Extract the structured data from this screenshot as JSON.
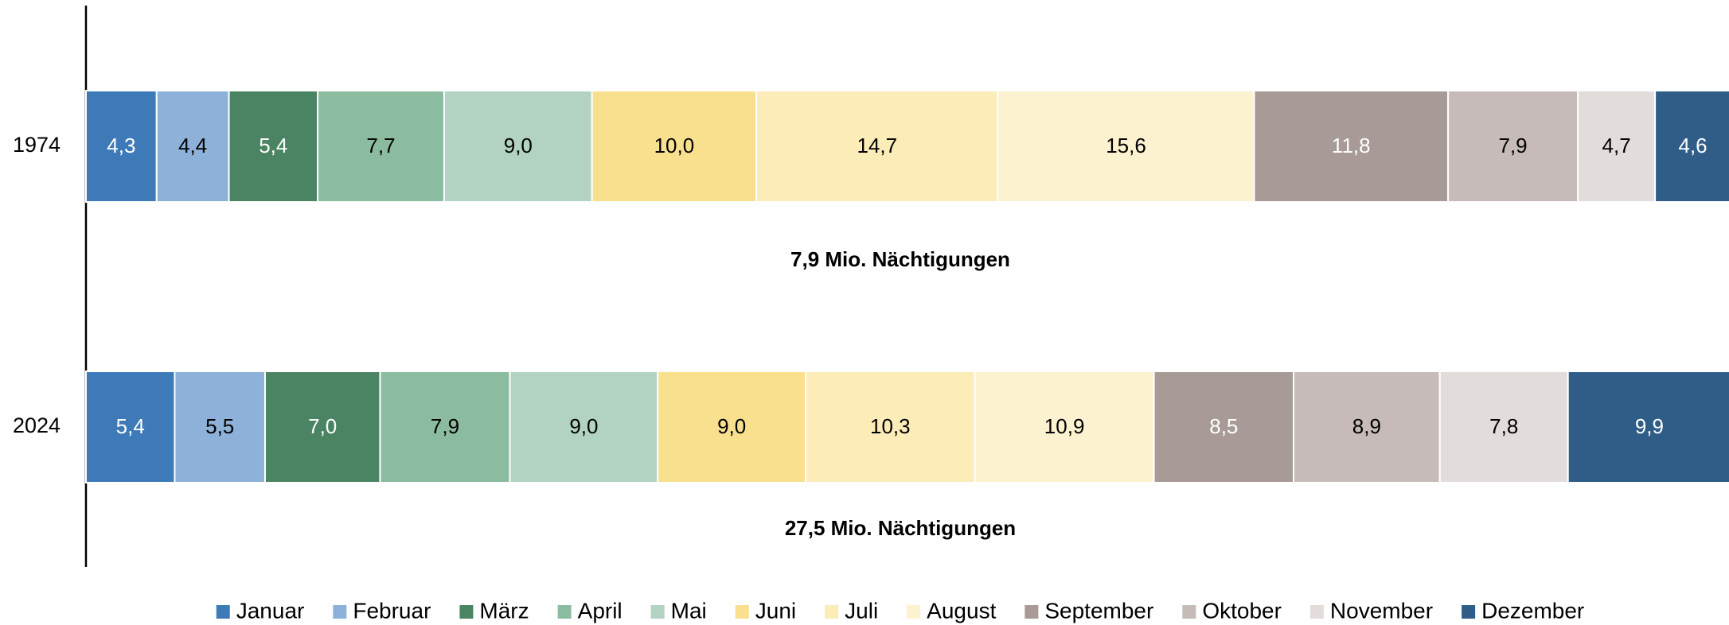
{
  "chart_data": {
    "type": "stacked-bar-horizontal",
    "categories": [
      "1974",
      "2024"
    ],
    "annotations": [
      "7,9 Mio. Nächtigungen",
      "27,5 Mio. Nächtigungen"
    ],
    "xlim": [
      0,
      100
    ],
    "legend": "bottom",
    "series": [
      {
        "name": "Januar",
        "color": "#3f7ab8",
        "values": [
          4.3,
          5.4
        ],
        "value_labels": [
          "4,3",
          "5,4"
        ]
      },
      {
        "name": "Februar",
        "color": "#8db1d8",
        "values": [
          4.4,
          5.5
        ],
        "value_labels": [
          "4,4",
          "5,5"
        ]
      },
      {
        "name": "März",
        "color": "#4a8462",
        "values": [
          5.4,
          7.0
        ],
        "value_labels": [
          "5,4",
          "7,0"
        ]
      },
      {
        "name": "April",
        "color": "#8cbca0",
        "values": [
          7.7,
          7.9
        ],
        "value_labels": [
          "7,7",
          "7,9"
        ]
      },
      {
        "name": "Mai",
        "color": "#b2d3c2",
        "values": [
          9.0,
          9.0
        ],
        "value_labels": [
          "9,0",
          "9,0"
        ]
      },
      {
        "name": "Juni",
        "color": "#f9e08f",
        "values": [
          10.0,
          9.0
        ],
        "value_labels": [
          "10,0",
          "9,0"
        ]
      },
      {
        "name": "Juli",
        "color": "#fbecb8",
        "values": [
          14.7,
          10.3
        ],
        "value_labels": [
          "14,7",
          "10,3"
        ]
      },
      {
        "name": "August",
        "color": "#fdf2d0",
        "values": [
          15.6,
          10.9
        ],
        "value_labels": [
          "15,6",
          "10,9"
        ]
      },
      {
        "name": "September",
        "color": "#a89a96",
        "values": [
          11.8,
          8.5
        ],
        "value_labels": [
          "11,8",
          "8,5"
        ]
      },
      {
        "name": "Oktober",
        "color": "#c6bbb8",
        "values": [
          7.9,
          8.9
        ],
        "value_labels": [
          "7,9",
          "8,9"
        ]
      },
      {
        "name": "November",
        "color": "#e2dcdb",
        "values": [
          4.7,
          7.8
        ],
        "value_labels": [
          "4,7",
          "7,8"
        ]
      },
      {
        "name": "Dezember",
        "color": "#2f5d88",
        "values": [
          4.6,
          9.9
        ],
        "value_labels": [
          "4,6",
          "9,9"
        ]
      }
    ]
  }
}
